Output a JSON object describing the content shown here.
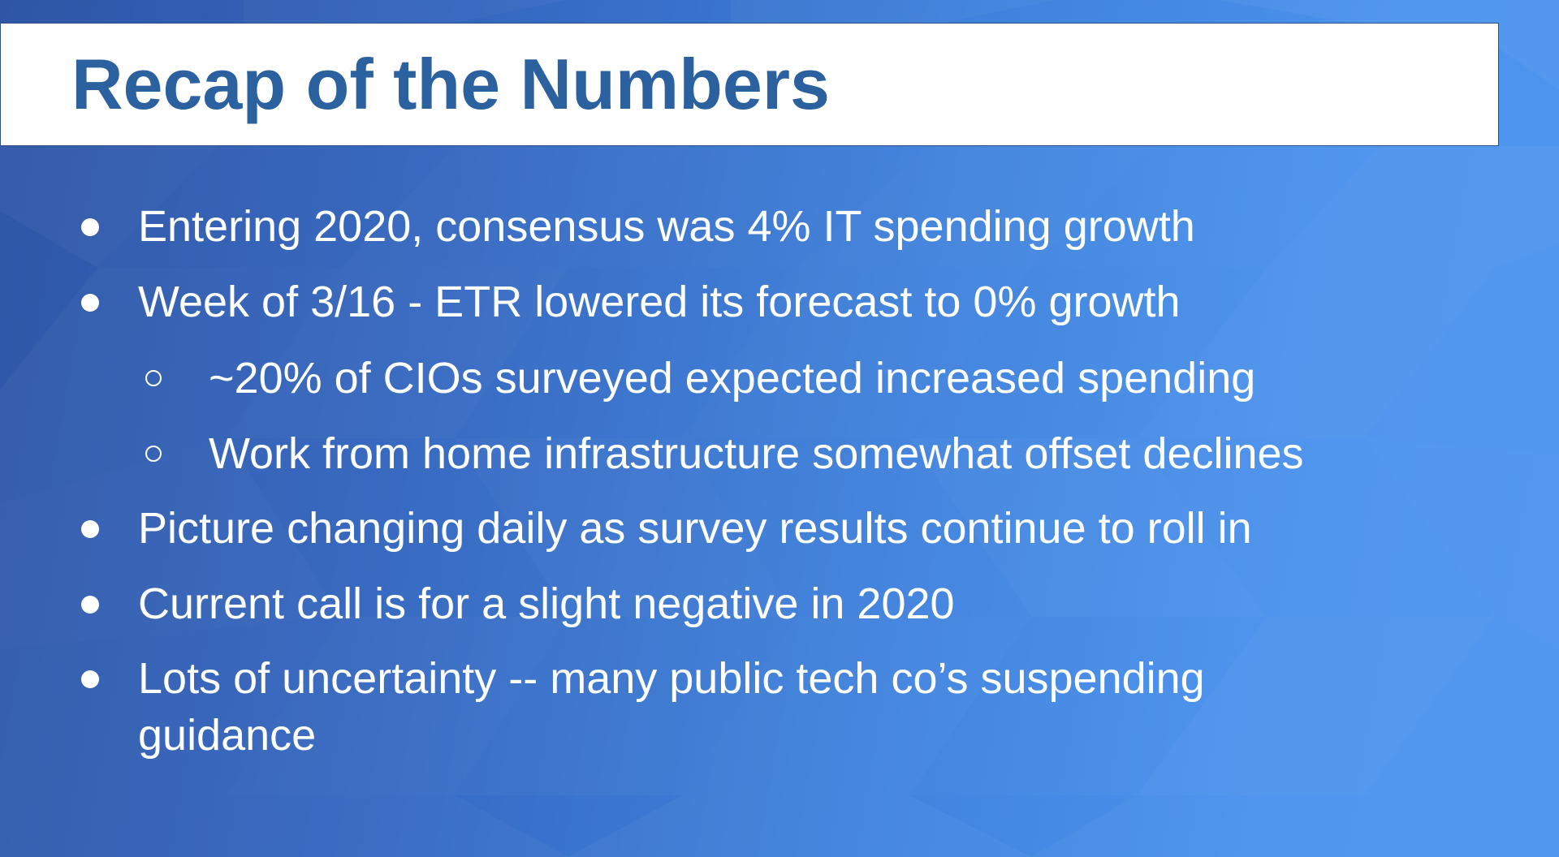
{
  "slide": {
    "title": "Recap of the Numbers",
    "bullets": [
      {
        "level": 1,
        "text": "Entering 2020, consensus was 4% IT spending growth"
      },
      {
        "level": 1,
        "text": "Week of 3/16 - ETR lowered its forecast to 0% growth"
      },
      {
        "level": 2,
        "text": "~20% of CIOs surveyed expected increased spending"
      },
      {
        "level": 2,
        "text": "Work from home infrastructure somewhat offset declines"
      },
      {
        "level": 1,
        "text": "Picture changing daily as survey results continue to roll in"
      },
      {
        "level": 1,
        "text": "Current call is for a slight negative in 2020"
      },
      {
        "level": 1,
        "text": "Lots of uncertainty -- many public tech co’s suspending",
        "continuation": "guidance"
      }
    ]
  },
  "theme": {
    "title_color": "#2a619e",
    "text_color": "#ffffff",
    "background_start": "#2f56a6",
    "background_end": "#4d95ef"
  }
}
